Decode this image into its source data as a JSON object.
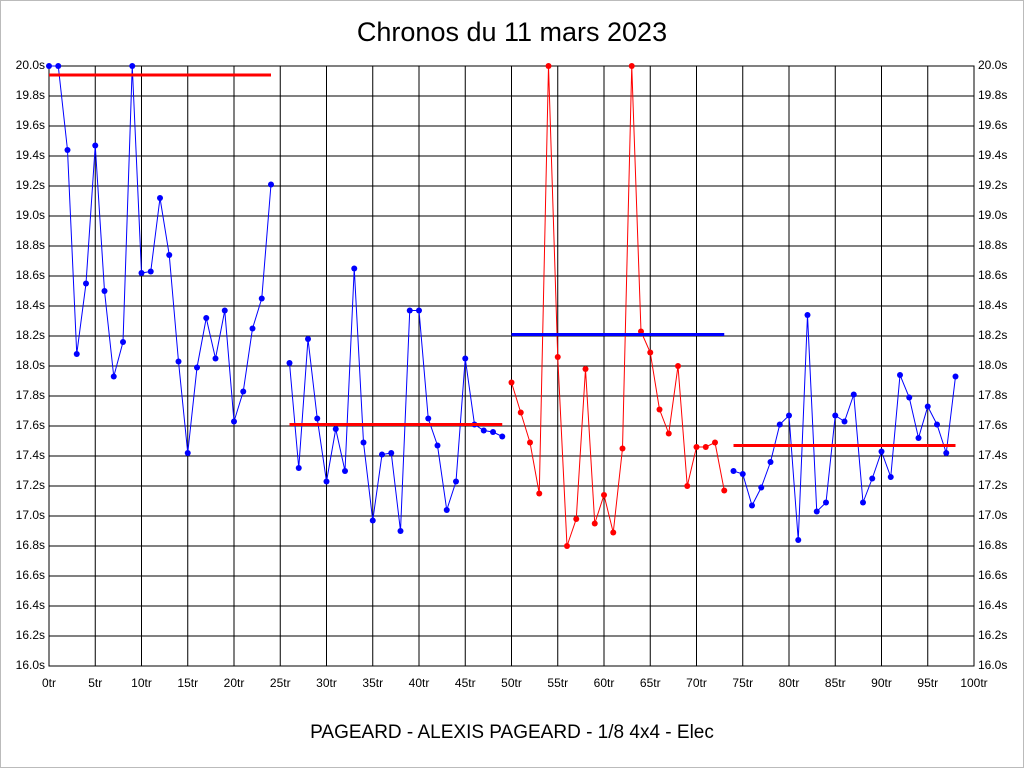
{
  "chart_data": {
    "type": "line",
    "title": "Chronos du 11 mars 2023",
    "footer": "PAGEARD - ALEXIS PAGEARD - 1/8 4x4 - Elec",
    "xlim": [
      0,
      100
    ],
    "xticks": [
      {
        "value": 0,
        "label": "0tr"
      },
      {
        "value": 5,
        "label": "5tr"
      },
      {
        "value": 10,
        "label": "10tr"
      },
      {
        "value": 15,
        "label": "15tr"
      },
      {
        "value": 20,
        "label": "20tr"
      },
      {
        "value": 25,
        "label": "25tr"
      },
      {
        "value": 30,
        "label": "30tr"
      },
      {
        "value": 35,
        "label": "35tr"
      },
      {
        "value": 40,
        "label": "40tr"
      },
      {
        "value": 45,
        "label": "45tr"
      },
      {
        "value": 50,
        "label": "50tr"
      },
      {
        "value": 55,
        "label": "55tr"
      },
      {
        "value": 60,
        "label": "60tr"
      },
      {
        "value": 65,
        "label": "65tr"
      },
      {
        "value": 70,
        "label": "70tr"
      },
      {
        "value": 75,
        "label": "75tr"
      },
      {
        "value": 80,
        "label": "80tr"
      },
      {
        "value": 85,
        "label": "85tr"
      },
      {
        "value": 90,
        "label": "90tr"
      },
      {
        "value": 95,
        "label": "95tr"
      },
      {
        "value": 100,
        "label": "100tr"
      }
    ],
    "ylim": [
      16.0,
      20.0
    ],
    "yticks": [
      {
        "value": 16.0,
        "label": "16.0s"
      },
      {
        "value": 16.2,
        "label": "16.2s"
      },
      {
        "value": 16.4,
        "label": "16.4s"
      },
      {
        "value": 16.6,
        "label": "16.6s"
      },
      {
        "value": 16.8,
        "label": "16.8s"
      },
      {
        "value": 17.0,
        "label": "17.0s"
      },
      {
        "value": 17.2,
        "label": "17.2s"
      },
      {
        "value": 17.4,
        "label": "17.4s"
      },
      {
        "value": 17.6,
        "label": "17.6s"
      },
      {
        "value": 17.8,
        "label": "17.8s"
      },
      {
        "value": 18.0,
        "label": "18.0s"
      },
      {
        "value": 18.2,
        "label": "18.2s"
      },
      {
        "value": 18.4,
        "label": "18.4s"
      },
      {
        "value": 18.6,
        "label": "18.6s"
      },
      {
        "value": 18.8,
        "label": "18.8s"
      },
      {
        "value": 19.0,
        "label": "19.0s"
      },
      {
        "value": 19.2,
        "label": "19.2s"
      },
      {
        "value": 19.4,
        "label": "19.4s"
      },
      {
        "value": 19.6,
        "label": "19.6s"
      },
      {
        "value": 19.8,
        "label": "19.8s"
      },
      {
        "value": 20.0,
        "label": "20.0s"
      }
    ],
    "grid": true,
    "series": [
      {
        "color": "#0000ff",
        "x": [
          0,
          1,
          2,
          3,
          4,
          5,
          6,
          7,
          8,
          9,
          10,
          11,
          12,
          13,
          14,
          15,
          16,
          17,
          18,
          19,
          20,
          21,
          22,
          23,
          24
        ],
        "values": [
          20.0,
          20.0,
          19.44,
          18.08,
          18.55,
          19.47,
          18.5,
          17.93,
          18.16,
          20.0,
          18.62,
          18.63,
          19.12,
          18.74,
          18.03,
          17.42,
          17.99,
          18.32,
          18.05,
          18.37,
          17.63,
          17.83,
          18.25,
          18.45,
          19.21
        ]
      },
      {
        "color": "#0000ff",
        "x": [
          26,
          27,
          28,
          29,
          30,
          31,
          32,
          33,
          34,
          35,
          36,
          37,
          38,
          39,
          40,
          41,
          42,
          43,
          44,
          45,
          46,
          47,
          48,
          49
        ],
        "values": [
          18.02,
          17.32,
          18.18,
          17.65,
          17.23,
          17.58,
          17.3,
          18.65,
          17.49,
          16.97,
          17.41,
          17.42,
          16.9,
          18.37,
          18.37,
          17.65,
          17.47,
          17.04,
          17.23,
          18.05,
          17.61,
          17.57,
          17.56,
          17.53
        ]
      },
      {
        "color": "#ff0000",
        "x": [
          50,
          51,
          52,
          53,
          54,
          55,
          56,
          57,
          58,
          59,
          60,
          61,
          62,
          63,
          64,
          65,
          66,
          67,
          68,
          69,
          70,
          71,
          72,
          73
        ],
        "values": [
          17.89,
          17.69,
          17.49,
          17.15,
          20.0,
          18.06,
          16.8,
          16.98,
          17.98,
          16.95,
          17.14,
          16.89,
          17.45,
          20.0,
          18.23,
          18.09,
          17.71,
          17.55,
          18.0,
          17.2,
          17.46,
          17.46,
          17.49,
          17.17
        ]
      },
      {
        "color": "#0000ff",
        "x": [
          74,
          75,
          76,
          77,
          78,
          79,
          80,
          81,
          82,
          83,
          84,
          85,
          86,
          87,
          88,
          89,
          90,
          91,
          92,
          93,
          94,
          95,
          96,
          97,
          98
        ],
        "values": [
          17.3,
          17.28,
          17.07,
          17.19,
          17.36,
          17.61,
          17.67,
          16.84,
          18.34,
          17.03,
          17.09,
          17.67,
          17.63,
          17.81,
          17.09,
          17.25,
          17.43,
          17.26,
          17.94,
          17.79,
          17.52,
          17.73,
          17.61,
          17.42,
          17.93
        ]
      }
    ],
    "averages": [
      {
        "value": 19.94,
        "x": [
          0,
          24
        ],
        "color": "#ff0000"
      },
      {
        "value": 17.61,
        "x": [
          26,
          49
        ],
        "color": "#ff0000"
      },
      {
        "value": 18.21,
        "x": [
          50,
          73
        ],
        "color": "#0000ff"
      },
      {
        "value": 17.47,
        "x": [
          74,
          98
        ],
        "color": "#ff0000"
      }
    ]
  }
}
